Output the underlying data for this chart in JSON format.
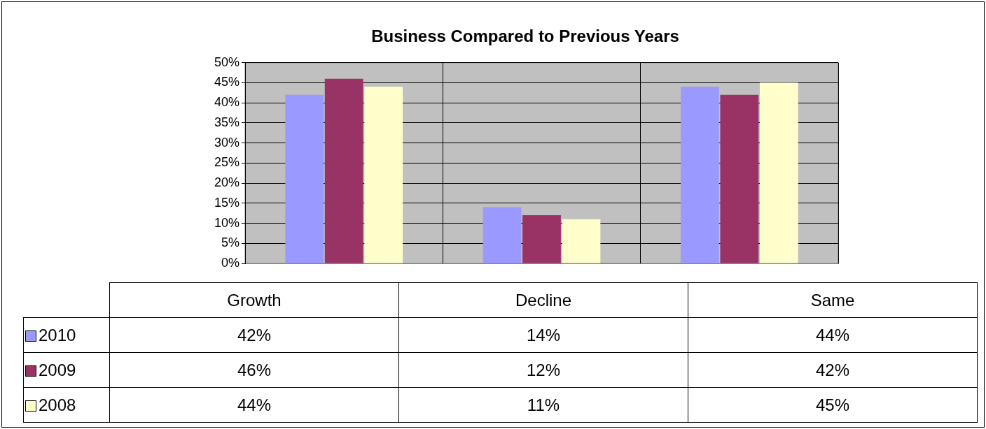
{
  "chart_data": {
    "type": "bar",
    "title": "Business Compared to Previous Years",
    "categories": [
      "Growth",
      "Decline",
      "Same"
    ],
    "series": [
      {
        "name": "2010",
        "color": "#9999ff",
        "values": [
          42,
          14,
          44
        ],
        "value_labels": [
          "42%",
          "14%",
          "44%"
        ]
      },
      {
        "name": "2009",
        "color": "#993366",
        "values": [
          46,
          12,
          42
        ],
        "value_labels": [
          "46%",
          "12%",
          "42%"
        ]
      },
      {
        "name": "2008",
        "color": "#ffffcc",
        "values": [
          44,
          11,
          45
        ],
        "value_labels": [
          "44%",
          "11%",
          "45%"
        ]
      }
    ],
    "ylim": [
      0,
      50
    ],
    "yticks": [
      {
        "value": 0,
        "label": "0%"
      },
      {
        "value": 5,
        "label": "5%"
      },
      {
        "value": 10,
        "label": "10%"
      },
      {
        "value": 15,
        "label": "15%"
      },
      {
        "value": 20,
        "label": "20%"
      },
      {
        "value": 25,
        "label": "25%"
      },
      {
        "value": 30,
        "label": "30%"
      },
      {
        "value": 35,
        "label": "35%"
      },
      {
        "value": 40,
        "label": "40%"
      },
      {
        "value": 45,
        "label": "45%"
      },
      {
        "value": 50,
        "label": "50%"
      }
    ],
    "grid": true,
    "legend": "bottom",
    "tick_labels": "y"
  }
}
